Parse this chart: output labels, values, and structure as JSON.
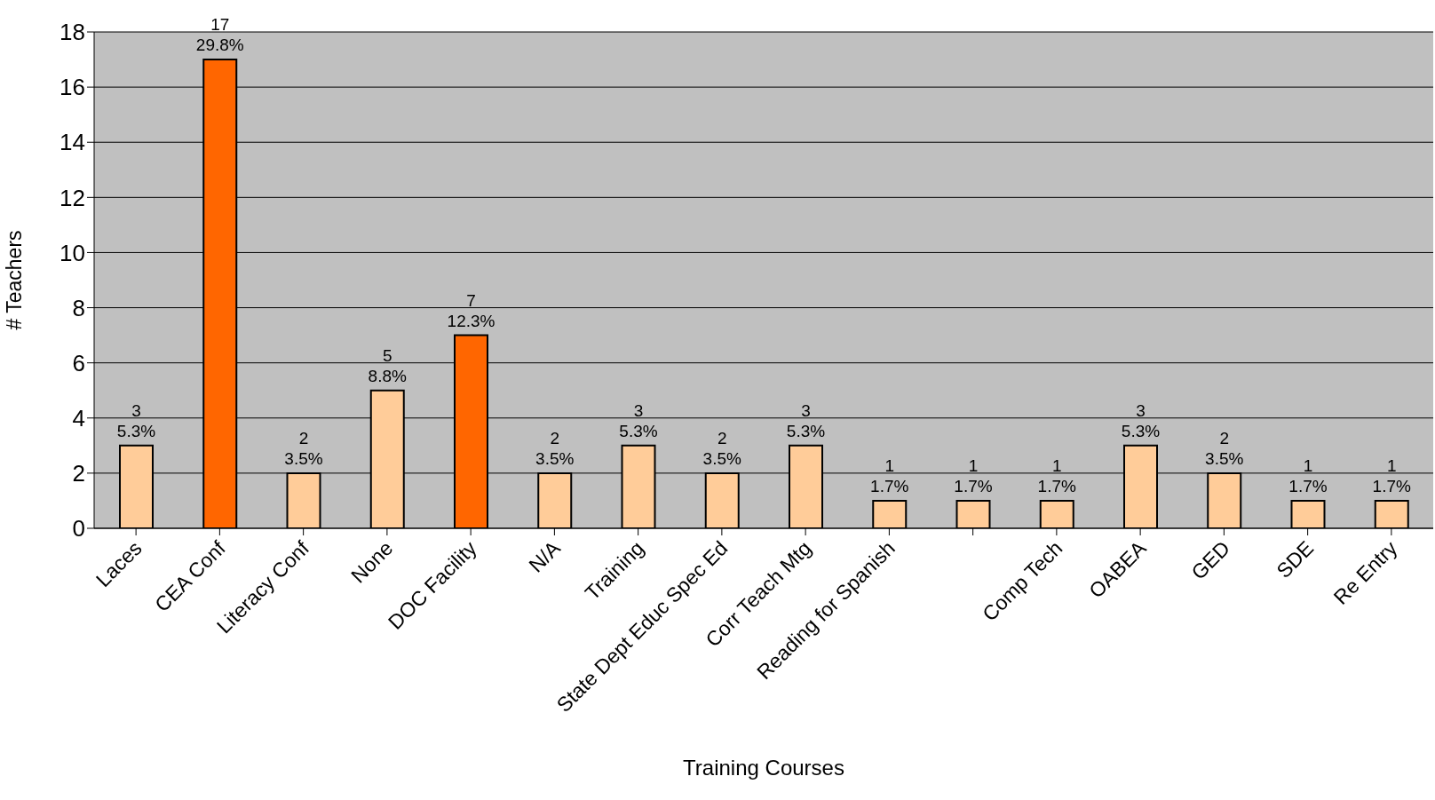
{
  "chart_data": {
    "type": "bar",
    "xlabel": "Training Courses",
    "ylabel": "# Teachers",
    "categories": [
      "Laces",
      "CEA Conf",
      "Literacy Conf",
      "None",
      "DOC Facility",
      "N/A",
      "Training",
      "State Dept Educ Spec Ed",
      "Corr Teach Mtg",
      "Reading for Spanish",
      null,
      "Comp Tech",
      "OABEA",
      "GED",
      "SDE",
      "Re Entry"
    ],
    "values": [
      3,
      17,
      2,
      5,
      7,
      2,
      3,
      2,
      3,
      1,
      1,
      1,
      3,
      2,
      1,
      1
    ],
    "value_labels": [
      "3\n5.3%",
      "17\n29.8%",
      "2\n3.5%",
      "5\n8.8%",
      "7\n12.3%",
      "2\n3.5%",
      "3\n5.3%",
      "2\n3.5%",
      "3\n5.3%",
      "1\n1.7%",
      "1\n1.7%",
      "1\n1.7%",
      "3\n5.3%",
      "2\n3.5%",
      "1\n1.7%",
      "1\n1.7%"
    ],
    "colors": [
      "#ffcc99",
      "#ff6600",
      "#ffcc99",
      "#ffcc99",
      "#ff6600",
      "#ffcc99",
      "#ffcc99",
      "#ffcc99",
      "#ffcc99",
      "#ffcc99",
      "#ffcc99",
      "#ffcc99",
      "#ffcc99",
      "#ffcc99",
      "#ffcc99",
      "#ffcc99"
    ],
    "ylim": [
      0,
      18
    ],
    "yticks": [
      0,
      2,
      4,
      6,
      8,
      10,
      12,
      14,
      16,
      18
    ],
    "grid": "y",
    "legend": false
  }
}
